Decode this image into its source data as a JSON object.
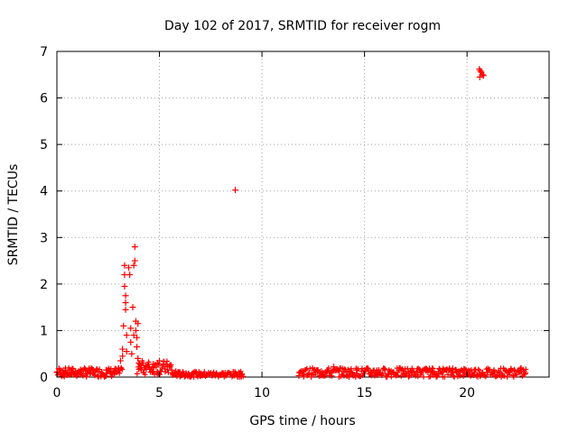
{
  "chart_data": {
    "type": "scatter",
    "title": "Day 102 of 2017, SRMTID for receiver rogm",
    "xlabel": "GPS time / hours",
    "ylabel": "SRMTID / TECUs",
    "xlim": [
      0,
      24
    ],
    "ylim": [
      0,
      7
    ],
    "xticks": [
      0,
      5,
      10,
      15,
      20
    ],
    "yticks": [
      0,
      1,
      2,
      3,
      4,
      5,
      6,
      7
    ],
    "grid": true,
    "marker": "+",
    "color": "#ff0000",
    "series": [
      {
        "name": "SRMTID",
        "points": [
          [
            0.0,
            0.1
          ],
          [
            0.1,
            0.18
          ],
          [
            0.2,
            0.08
          ],
          [
            0.3,
            0.14
          ],
          [
            0.4,
            0.12
          ],
          [
            0.5,
            0.07
          ],
          [
            0.6,
            0.15
          ],
          [
            0.7,
            0.1
          ],
          [
            0.8,
            0.06
          ],
          [
            0.9,
            0.12
          ],
          [
            1.0,
            0.09
          ],
          [
            1.2,
            0.13
          ],
          [
            1.4,
            0.08
          ],
          [
            1.6,
            0.14
          ],
          [
            1.8,
            0.1
          ],
          [
            2.0,
            0.12
          ],
          [
            2.2,
            0.08
          ],
          [
            2.4,
            0.15
          ],
          [
            2.6,
            0.1
          ],
          [
            2.8,
            0.13
          ],
          [
            3.0,
            0.18
          ],
          [
            3.1,
            0.35
          ],
          [
            3.2,
            0.6
          ],
          [
            3.2,
            0.45
          ],
          [
            3.25,
            1.1
          ],
          [
            3.3,
            2.4
          ],
          [
            3.3,
            2.2
          ],
          [
            3.3,
            1.95
          ],
          [
            3.35,
            1.75
          ],
          [
            3.35,
            1.6
          ],
          [
            3.35,
            1.45
          ],
          [
            3.4,
            0.9
          ],
          [
            3.4,
            0.55
          ],
          [
            3.5,
            2.35
          ],
          [
            3.55,
            2.2
          ],
          [
            3.6,
            1.05
          ],
          [
            3.6,
            0.75
          ],
          [
            3.65,
            0.5
          ],
          [
            3.7,
            1.5
          ],
          [
            3.75,
            2.4
          ],
          [
            3.75,
            0.9
          ],
          [
            3.8,
            2.8
          ],
          [
            3.8,
            2.5
          ],
          [
            3.85,
            1.2
          ],
          [
            3.85,
            1.0
          ],
          [
            3.9,
            0.85
          ],
          [
            3.9,
            0.65
          ],
          [
            3.95,
            0.4
          ],
          [
            3.95,
            1.15
          ],
          [
            4.0,
            0.3
          ],
          [
            4.1,
            0.25
          ],
          [
            4.2,
            0.3
          ],
          [
            4.3,
            0.2
          ],
          [
            4.5,
            0.22
          ],
          [
            4.7,
            0.28
          ],
          [
            4.9,
            0.3
          ],
          [
            5.0,
            0.35
          ],
          [
            5.2,
            0.28
          ],
          [
            5.4,
            0.22
          ],
          [
            5.6,
            0.15
          ],
          [
            5.8,
            0.12
          ],
          [
            6.0,
            0.1
          ],
          [
            6.3,
            0.08
          ],
          [
            6.6,
            0.07
          ],
          [
            7.0,
            0.06
          ],
          [
            7.3,
            0.05
          ],
          [
            7.6,
            0.06
          ],
          [
            8.0,
            0.05
          ],
          [
            8.3,
            0.07
          ],
          [
            8.6,
            0.06
          ],
          [
            8.9,
            0.08
          ],
          [
            9.0,
            0.05
          ],
          [
            8.7,
            4.02
          ],
          [
            11.8,
            0.03
          ],
          [
            12.0,
            0.06
          ],
          [
            12.3,
            0.08
          ],
          [
            12.6,
            0.1
          ],
          [
            12.9,
            0.12
          ],
          [
            13.2,
            0.15
          ],
          [
            13.5,
            0.22
          ],
          [
            13.8,
            0.18
          ],
          [
            14.0,
            0.12
          ],
          [
            14.3,
            0.1
          ],
          [
            14.6,
            0.15
          ],
          [
            15.0,
            0.12
          ],
          [
            15.3,
            0.1
          ],
          [
            15.6,
            0.14
          ],
          [
            16.0,
            0.16
          ],
          [
            16.3,
            0.12
          ],
          [
            16.6,
            0.1
          ],
          [
            17.0,
            0.08
          ],
          [
            17.3,
            0.12
          ],
          [
            17.6,
            0.1
          ],
          [
            18.0,
            0.14
          ],
          [
            18.3,
            0.1
          ],
          [
            18.6,
            0.12
          ],
          [
            19.0,
            0.15
          ],
          [
            19.3,
            0.18
          ],
          [
            19.6,
            0.12
          ],
          [
            20.0,
            0.08
          ],
          [
            20.3,
            0.05
          ],
          [
            20.6,
            0.07
          ],
          [
            21.0,
            0.1
          ],
          [
            21.3,
            0.12
          ],
          [
            21.6,
            0.08
          ],
          [
            22.0,
            0.1
          ],
          [
            22.3,
            0.15
          ],
          [
            22.6,
            0.12
          ],
          [
            22.8,
            0.06
          ],
          [
            20.6,
            6.62
          ],
          [
            20.65,
            6.58
          ],
          [
            20.7,
            6.55
          ],
          [
            20.75,
            6.5
          ],
          [
            20.8,
            6.48
          ],
          [
            20.62,
            6.45
          ]
        ]
      }
    ],
    "dense_bands": [
      {
        "x_start": 0.0,
        "x_end": 3.2,
        "y_low": 0.0,
        "y_high": 0.2
      },
      {
        "x_start": 3.9,
        "x_end": 5.6,
        "y_low": 0.05,
        "y_high": 0.35
      },
      {
        "x_start": 5.6,
        "x_end": 9.1,
        "y_low": 0.0,
        "y_high": 0.12
      },
      {
        "x_start": 11.8,
        "x_end": 22.9,
        "y_low": 0.0,
        "y_high": 0.2
      }
    ]
  }
}
